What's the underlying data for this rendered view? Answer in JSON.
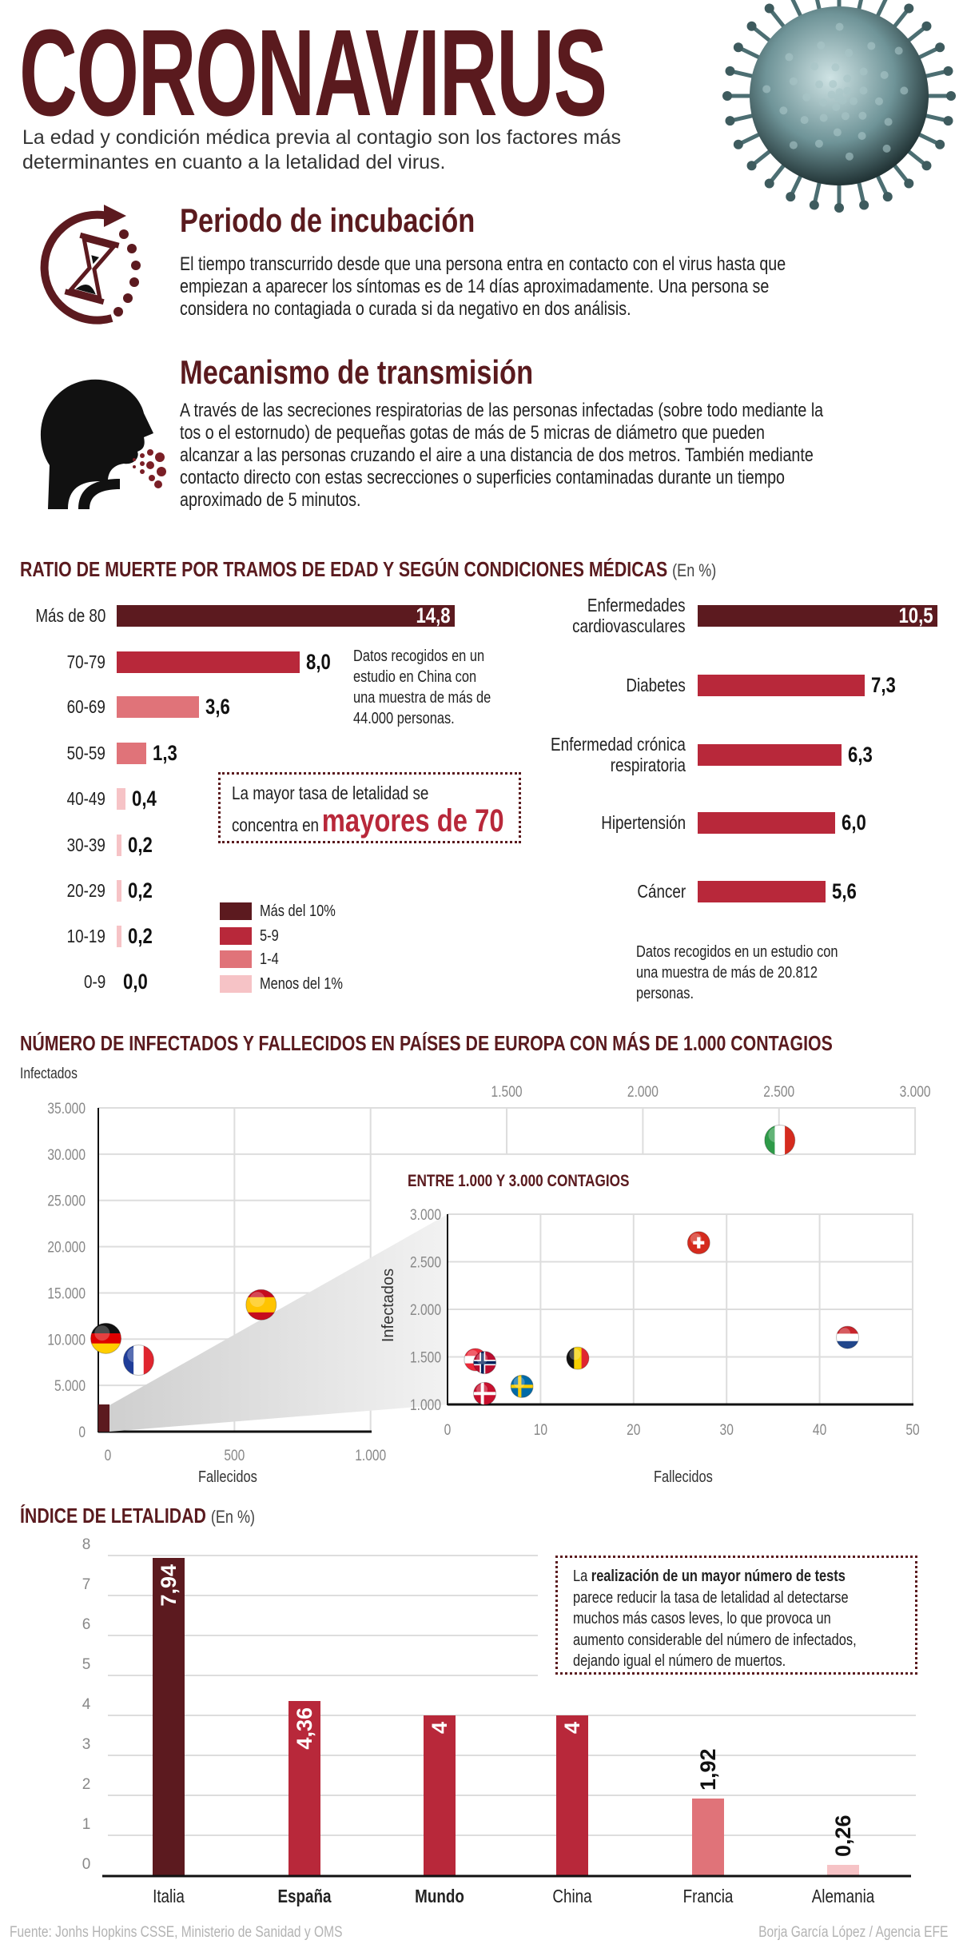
{
  "header": {
    "title": "CORONAVIRUS",
    "subtitle_lines": [
      "La edad y condición médica previa al contagio son los factores más",
      "determinantes en cuanto a la letalidad del virus."
    ]
  },
  "incubation": {
    "icon": "hourglass-cycle-icon",
    "heading": "Periodo de incubación",
    "lines": [
      "El tiempo transcurrido desde que una persona entra en contacto con el virus hasta que",
      "empiezan a aparecer los síntomas es de 14 días aproximadamente. Una persona se",
      "considera no contagiada o curada si da negativo en dos análisis."
    ]
  },
  "transmission": {
    "icon": "sneezing-head-icon",
    "heading": "Mecanismo de transmisión",
    "lines": [
      "A través de las secreciones respiratorias de las personas infectadas (sobre todo mediante la",
      "tos o el estornudo) de pequeñas gotas de más de 5 micras de diámetro que pueden",
      "alcanzar a las personas cruzando el aire a una distancia de dos metros. También mediante",
      "contacto directo con estas secrecciones o superficies contaminadas durante un tiempo",
      "aproximado de 5 minutos."
    ]
  },
  "colors": {
    "dark": "#5c1a1f",
    "red": "#b8283a",
    "light": "#e07379",
    "pale": "#f6c3c6",
    "title": "#5a1a1e"
  },
  "ratio_section": {
    "title": "RATIO DE MUERTE POR TRAMOS DE EDAD Y SEGÚN CONDICIONES MÉDICAS",
    "unit": "(En %)",
    "age_note_lines": [
      "Datos recogidos en un",
      "estudio en China con",
      "una muestra de más de",
      "44.000 personas."
    ],
    "callout_line1": "La mayor tasa de letalidad se",
    "callout_line2_prefix": "concentra en",
    "callout_highlight": "mayores de 70",
    "legend": [
      {
        "label": "Más del 10%",
        "color": "#5c1a1f"
      },
      {
        "label": "5-9",
        "color": "#b8283a"
      },
      {
        "label": "1-4",
        "color": "#e07379"
      },
      {
        "label": "Menos del 1%",
        "color": "#f6c3c6"
      }
    ],
    "medical_note_lines": [
      "Datos recogidos en un estudio con",
      "una muestra de más de 20.812",
      "personas."
    ]
  },
  "chart_data": [
    {
      "type": "bar",
      "orientation": "horizontal",
      "title": "Ratio de muerte por tramos de edad (En %)",
      "categories": [
        "Más de 80",
        "70-79",
        "60-69",
        "50-59",
        "40-49",
        "30-39",
        "20-29",
        "10-19",
        "0-9"
      ],
      "values": [
        14.8,
        8.0,
        3.6,
        1.3,
        0.4,
        0.2,
        0.2,
        0.2,
        0.0
      ],
      "labels": [
        "14,8",
        "8,0",
        "3,6",
        "1,3",
        "0,4",
        "0,2",
        "0,2",
        "0,2",
        "0,0"
      ],
      "color_class": [
        "dark",
        "red",
        "light",
        "light",
        "pale",
        "pale",
        "pale",
        "pale",
        "pale"
      ]
    },
    {
      "type": "bar",
      "orientation": "horizontal",
      "title": "Ratio de muerte según condiciones médicas (En %)",
      "categories": [
        [
          "Enfermedades",
          "cardiovasculares"
        ],
        [
          "Diabetes"
        ],
        [
          "Enfermedad crónica",
          "respiratoria"
        ],
        [
          "Hipertensión"
        ],
        [
          "Cáncer"
        ]
      ],
      "values": [
        10.5,
        7.3,
        6.3,
        6.0,
        5.6
      ],
      "labels": [
        "10,5",
        "7,3",
        "6,3",
        "6,0",
        "5,6"
      ],
      "color_class": [
        "dark",
        "red",
        "red",
        "red",
        "red"
      ]
    },
    {
      "type": "scatter",
      "title": "NÚMERO DE INFECTADOS Y FALLECIDOS EN PAÍSES DE EUROPA CON MÁS DE 1.000 CONTAGIOS",
      "ylabel": "Infectados",
      "xlabel": "Fallecidos",
      "xlim": [
        0,
        3000
      ],
      "ylim": [
        0,
        35000
      ],
      "xticks": [
        "0",
        "500",
        "1.000",
        "1.500",
        "2.000",
        "2.500",
        "3.000"
      ],
      "xtick_values": [
        0,
        500,
        1000,
        1500,
        2000,
        2500,
        3000
      ],
      "yticks": [
        "0",
        "5.000",
        "10.000",
        "15.000",
        "20.000",
        "25.000",
        "30.000",
        "35.000"
      ],
      "ytick_values": [
        0,
        5000,
        10000,
        15000,
        20000,
        25000,
        30000,
        35000
      ],
      "grid": true,
      "points": [
        {
          "flag": "italy",
          "x": 2503,
          "y": 31506
        },
        {
          "flag": "spain",
          "x": 598,
          "y": 13716
        },
        {
          "flag": "germany",
          "x": 28,
          "y": 10082
        },
        {
          "flag": "france",
          "x": 148,
          "y": 7730
        }
      ]
    },
    {
      "type": "scatter",
      "title": "ENTRE 1.000 Y 3.000 CONTAGIOS",
      "ylabel": "Infectados",
      "xlabel": "Fallecidos",
      "xlim": [
        0,
        50
      ],
      "ylim": [
        1000,
        3000
      ],
      "xticks": [
        "0",
        "10",
        "20",
        "30",
        "40",
        "50"
      ],
      "xtick_values": [
        0,
        10,
        20,
        30,
        40,
        50
      ],
      "yticks": [
        "1.000",
        "1.500",
        "2.000",
        "2.500",
        "3.000"
      ],
      "ytick_values": [
        1000,
        1500,
        2000,
        2500,
        3000
      ],
      "grid": true,
      "points": [
        {
          "flag": "switzerland",
          "x": 27,
          "y": 2700
        },
        {
          "flag": "netherlands",
          "x": 43,
          "y": 1705
        },
        {
          "flag": "belgium",
          "x": 14,
          "y": 1486
        },
        {
          "flag": "austria",
          "x": 3,
          "y": 1471
        },
        {
          "flag": "norway",
          "x": 4,
          "y": 1440
        },
        {
          "flag": "sweden",
          "x": 8,
          "y": 1190
        },
        {
          "flag": "denmark",
          "x": 4,
          "y": 1115
        }
      ]
    },
    {
      "type": "bar",
      "title": "ÍNDICE DE LETALIDAD",
      "unit": "(En %)",
      "categories": [
        "Italia",
        "España",
        "Mundo",
        "China",
        "Francia",
        "Alemania"
      ],
      "bold_categories": [
        "España",
        "Mundo"
      ],
      "values": [
        7.94,
        4.36,
        4,
        4,
        1.92,
        0.26
      ],
      "labels": [
        "7,94",
        "4,36",
        "4",
        "4",
        "1,92",
        "0,26"
      ],
      "color_class": [
        "dark",
        "red",
        "red",
        "red",
        "light",
        "pale"
      ],
      "ylim": [
        0,
        8
      ],
      "yticks": [
        "0",
        "1",
        "2",
        "3",
        "4",
        "5",
        "6",
        "7",
        "8"
      ],
      "grid": true
    }
  ],
  "lethality_note": {
    "prefix": "La",
    "bold": "realización de un mayor número de tests",
    "lines": [
      "parece reducir la tasa de letalidad al detectarse",
      "muchos más casos leves, lo que provoca un",
      "aumento considerable del número de infectados,",
      "dejando igual el número de muertos."
    ]
  },
  "footer": {
    "source": "Fuente: Jonhs Hopkins CSSE, Ministerio de Sanidad y OMS",
    "credit": "Borja García López / Agencia EFE"
  }
}
